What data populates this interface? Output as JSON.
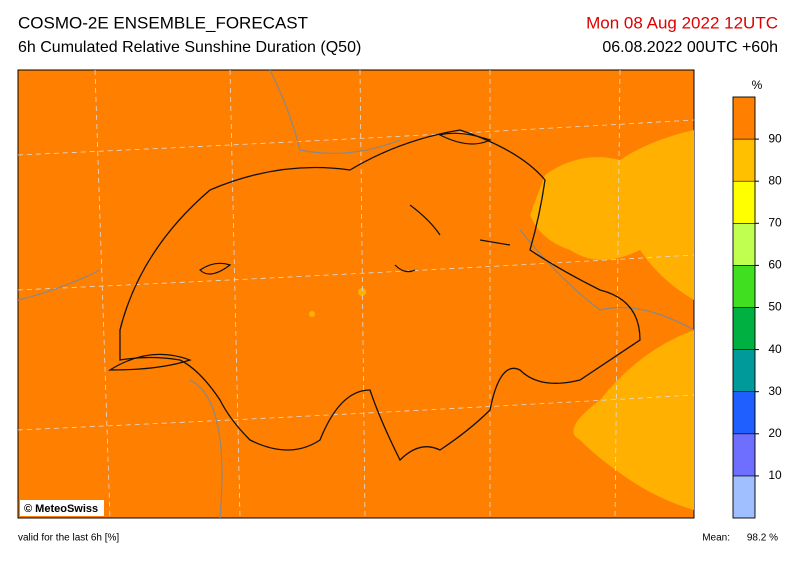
{
  "header": {
    "title": "COSMO-2E ENSEMBLE_FORECAST",
    "subtitle": "6h Cumulated Relative Sunshine Duration (Q50)",
    "valid_time": "Mon 08 Aug 2022 12UTC",
    "run": "06.08.2022 00UTC +60h"
  },
  "colorbar": {
    "unit": "%",
    "ticks": [
      10,
      20,
      30,
      40,
      50,
      60,
      70,
      80,
      90
    ],
    "range": [
      0,
      100
    ],
    "colors": [
      "#9fbfff",
      "#6f6fff",
      "#1f5fff",
      "#009a9a",
      "#00b040",
      "#40e020",
      "#c0ff50",
      "#ffff00",
      "#ffc000",
      "#ff8000"
    ]
  },
  "map": {
    "copyright": "© MeteoSwiss",
    "fill": "#ff7f00",
    "patch_color": "#ffb000"
  },
  "footer": {
    "validity": "valid for the last 6h [%]",
    "mean_label": "Mean:",
    "mean_value": "98.2 %"
  }
}
